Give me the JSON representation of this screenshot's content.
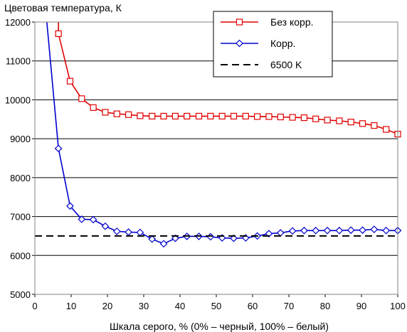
{
  "chart_data": {
    "type": "line",
    "title": "Цветовая температура, К",
    "xlabel": "Шкала серого, % (0% – черный, 100% – белый)",
    "ylabel": "",
    "xlim": [
      0,
      100
    ],
    "ylim": [
      5000,
      12000
    ],
    "x_ticks": [
      0,
      10,
      20,
      30,
      40,
      50,
      60,
      70,
      80,
      90,
      100
    ],
    "y_ticks": [
      5000,
      6000,
      7000,
      8000,
      9000,
      10000,
      11000,
      12000
    ],
    "grid": "horizontal",
    "legend_position": "top-right",
    "series": [
      {
        "name": "Без корр.",
        "color": "#e00000",
        "marker": "square",
        "x": [
          6.5,
          9.7,
          12.9,
          16.1,
          19.4,
          22.6,
          25.8,
          29.0,
          32.3,
          35.5,
          38.7,
          41.9,
          45.2,
          48.4,
          51.6,
          54.8,
          58.1,
          61.3,
          64.5,
          67.7,
          71.0,
          74.2,
          77.4,
          80.6,
          83.9,
          87.1,
          90.3,
          93.5,
          96.8,
          100.0
        ],
        "y": [
          11700,
          10480,
          10030,
          9800,
          9680,
          9640,
          9620,
          9590,
          9580,
          9580,
          9580,
          9580,
          9580,
          9580,
          9580,
          9580,
          9580,
          9570,
          9570,
          9560,
          9550,
          9540,
          9510,
          9480,
          9460,
          9430,
          9390,
          9340,
          9240,
          9120
        ],
        "line_start": [
          {
            "x": 6.5,
            "y": 12000
          }
        ]
      },
      {
        "name": "Корр.",
        "color": "#0000cc",
        "marker": "diamond",
        "x": [
          6.5,
          9.7,
          12.9,
          16.1,
          19.4,
          22.6,
          25.8,
          29.0,
          32.3,
          35.5,
          38.7,
          41.9,
          45.2,
          48.4,
          51.6,
          54.8,
          58.1,
          61.3,
          64.5,
          67.7,
          71.0,
          74.2,
          77.4,
          80.6,
          83.9,
          87.1,
          90.3,
          93.5,
          96.8,
          100.0
        ],
        "y": [
          8750,
          7270,
          6930,
          6920,
          6750,
          6620,
          6600,
          6590,
          6420,
          6300,
          6440,
          6490,
          6490,
          6480,
          6450,
          6440,
          6450,
          6500,
          6560,
          6580,
          6630,
          6640,
          6640,
          6640,
          6640,
          6650,
          6650,
          6670,
          6640,
          6640
        ],
        "line_start": [
          {
            "x": 3.3,
            "y": 12000
          }
        ]
      },
      {
        "name": "6500 K",
        "color": "#000000",
        "style": "dashed",
        "x": [
          0,
          100
        ],
        "y": [
          6500,
          6500
        ]
      }
    ]
  }
}
